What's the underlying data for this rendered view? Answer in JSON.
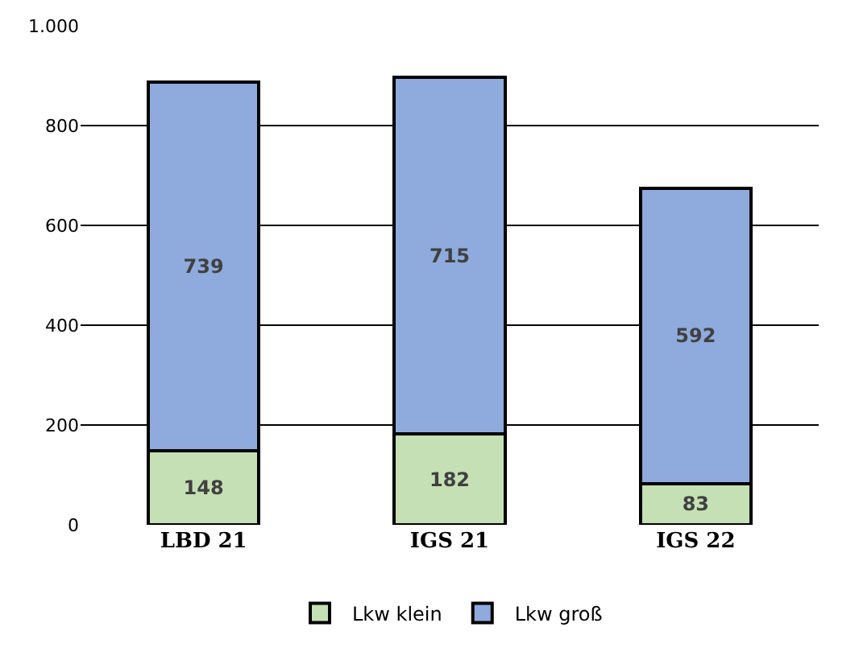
{
  "chart_data": {
    "type": "bar",
    "stacked": true,
    "categories": [
      "LBD 21",
      "IGS 21",
      "IGS 22"
    ],
    "series": [
      {
        "name": "Lkw klein",
        "color": "#c5e0b4",
        "values": [
          148,
          182,
          83
        ]
      },
      {
        "name": "Lkw groß",
        "color": "#8faadc",
        "values": [
          739,
          715,
          592
        ]
      }
    ],
    "ylim": [
      0,
      1000
    ],
    "yticks": [
      0,
      200,
      400,
      600,
      800,
      {
        "value": 1000,
        "label": "1.000"
      }
    ],
    "grid": "y",
    "legend": "bottom",
    "data_labels": true
  }
}
